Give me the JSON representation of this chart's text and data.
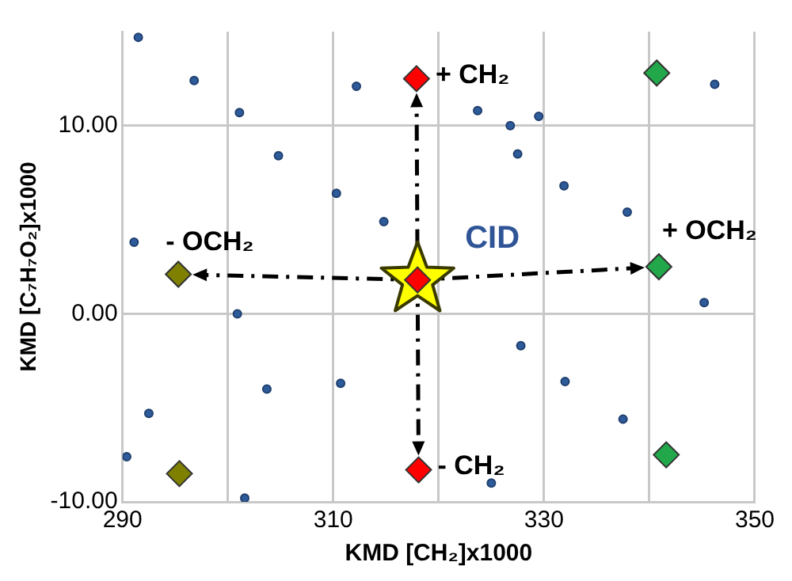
{
  "chart_data": {
    "type": "scatter",
    "xlabel": "KMD [CH₂]x1000",
    "ylabel": "KMD [C₇H₇O₂]x1000",
    "xlim": [
      290,
      350
    ],
    "xticks": [
      290,
      {
        "value": 300,
        "label": null
      },
      310,
      {
        "value": 320,
        "label": null
      },
      330,
      {
        "value": 340,
        "label": null
      },
      350
    ],
    "ylim": [
      -10,
      15
    ],
    "yticks": [
      {
        "value": -10,
        "label": "-10.00"
      },
      {
        "value": 0,
        "label": "0.00"
      },
      {
        "value": 10,
        "label": "10.00"
      }
    ],
    "grid": true,
    "legend": false,
    "series": [
      {
        "color": "#2e5b9a",
        "marker": "circle",
        "x": [
          291.5,
          296.8,
          301.1,
          304.8,
          310.3,
          314.8,
          291.1,
          312.2,
          323.7,
          326.8,
          329.5,
          327.5,
          331.9,
          337.9,
          346.2,
          300.9,
          303.7,
          310.7,
          292.5,
          290.4,
          301.6,
          345.2,
          327.8,
          332.0,
          337.5,
          325.0
        ],
        "values": [
          14.7,
          12.4,
          10.7,
          8.4,
          6.4,
          4.9,
          3.8,
          12.1,
          10.8,
          10.0,
          10.5,
          8.5,
          6.8,
          5.4,
          12.2,
          0.0,
          -4.0,
          -3.7,
          -5.3,
          -7.6,
          -9.8,
          0.6,
          -1.7,
          -3.6,
          -5.6,
          -9.0
        ]
      },
      {
        "color": "#ffff00",
        "marker": "star",
        "x": [
          318.0
        ],
        "values": [
          1.8
        ]
      },
      {
        "color": "#ff0000",
        "marker": "diamond",
        "x": [
          317.9,
          318.0,
          318.1
        ],
        "values": [
          12.5,
          1.8,
          -8.3
        ]
      },
      {
        "color": "#22a84a",
        "marker": "diamond",
        "x": [
          340.9,
          340.7,
          341.6
        ],
        "values": [
          2.5,
          12.8,
          -7.5
        ]
      },
      {
        "color": "#7f7f00",
        "marker": "diamond",
        "x": [
          295.3,
          295.4
        ],
        "values": [
          2.1,
          -8.5
        ]
      }
    ],
    "annotations": [
      {
        "text": "+ CH₂",
        "x": 317.9,
        "y": 12.5
      },
      {
        "text": "- CH₂",
        "x": 318.1,
        "y": -8.3
      },
      {
        "text": "+ OCH₂",
        "x": 340.9,
        "y": 2.5
      },
      {
        "text": "- OCH₂",
        "x": 295.3,
        "y": 2.1
      },
      {
        "text": "CID",
        "x": 318.0,
        "y": 1.8
      }
    ]
  }
}
